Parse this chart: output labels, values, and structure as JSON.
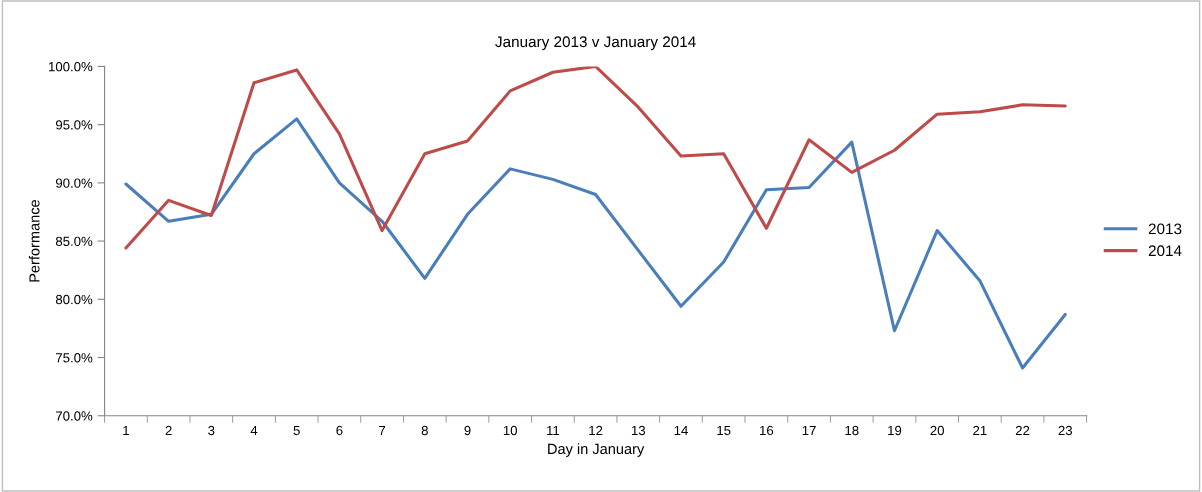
{
  "chart_data": {
    "type": "line",
    "title": "January 2013 v January 2014",
    "xlabel": "Day in January",
    "ylabel": "Performance",
    "categories": [
      "1",
      "2",
      "3",
      "4",
      "5",
      "6",
      "7",
      "8",
      "9",
      "10",
      "11",
      "12",
      "13",
      "14",
      "15",
      "16",
      "17",
      "18",
      "19",
      "20",
      "21",
      "22",
      "23"
    ],
    "series": [
      {
        "name": "2013",
        "color": "#4a7ebb",
        "values": [
          89.9,
          86.7,
          87.3,
          92.5,
          95.5,
          90.0,
          86.7,
          81.8,
          87.3,
          91.2,
          90.3,
          89.0,
          84.2,
          79.4,
          83.2,
          89.4,
          89.6,
          93.5,
          77.3,
          85.9,
          81.6,
          74.1,
          78.7
        ]
      },
      {
        "name": "2014",
        "color": "#be4b48",
        "values": [
          84.4,
          88.5,
          87.2,
          98.6,
          99.7,
          94.2,
          85.9,
          92.5,
          93.6,
          97.9,
          99.5,
          100.0,
          96.5,
          92.3,
          92.5,
          86.1,
          93.7,
          90.9,
          92.8,
          95.9,
          96.1,
          96.7,
          96.6
        ]
      }
    ],
    "ylim": [
      70,
      100
    ],
    "yticks": [
      {
        "value": 70,
        "label": "70.0%"
      },
      {
        "value": 75,
        "label": "75.0%"
      },
      {
        "value": 80,
        "label": "80.0%"
      },
      {
        "value": 85,
        "label": "85.0%"
      },
      {
        "value": 90,
        "label": "90.0%"
      },
      {
        "value": 95,
        "label": "95.0%"
      },
      {
        "value": 100,
        "label": "100.0%"
      }
    ],
    "grid": false,
    "legend": "right",
    "marker": "none",
    "line_style": "solid"
  }
}
